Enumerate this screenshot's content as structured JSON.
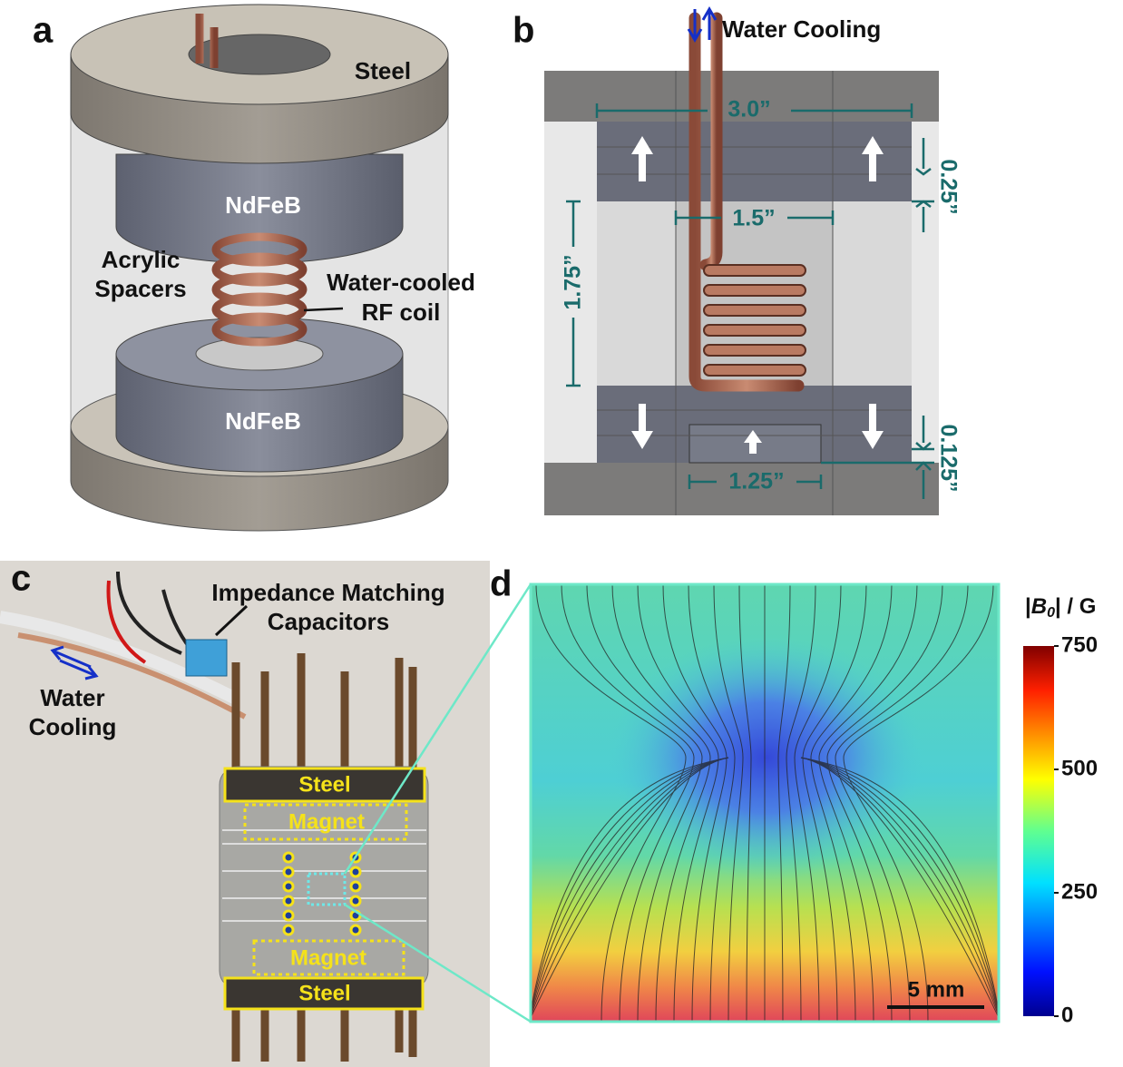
{
  "panel_a": {
    "label": "a",
    "steel": "Steel",
    "magnet_top": "NdFeB",
    "magnet_bottom": "NdFeB",
    "spacers": [
      "Acrylic",
      "Spacers"
    ],
    "coil": [
      "Water-cooled",
      "RF coil"
    ]
  },
  "panel_b": {
    "label": "b",
    "water_cooling": "Water Cooling",
    "dim_outer": "3.0”",
    "dim_inner": "1.5”",
    "dim_gap": "1.75”",
    "dim_thick": "0.25”",
    "dim_small_thick": "0.125”",
    "dim_small": "1.25”"
  },
  "panel_c": {
    "label": "c",
    "capacitors": [
      "Impedance Matching",
      "Capacitors"
    ],
    "water": [
      "Water",
      "Cooling"
    ],
    "steel_top": "Steel",
    "magnet_top": "Magnet",
    "magnet_bottom": "Magnet",
    "steel_bottom": "Steel"
  },
  "panel_d": {
    "label": "d",
    "colorbar_title": [
      "|",
      "B",
      "0",
      "| / G"
    ],
    "colorbar_lim": [
      0,
      750
    ],
    "colorbar_ticks": [
      0,
      250,
      500,
      750
    ],
    "scale_bar": "5 mm"
  }
}
